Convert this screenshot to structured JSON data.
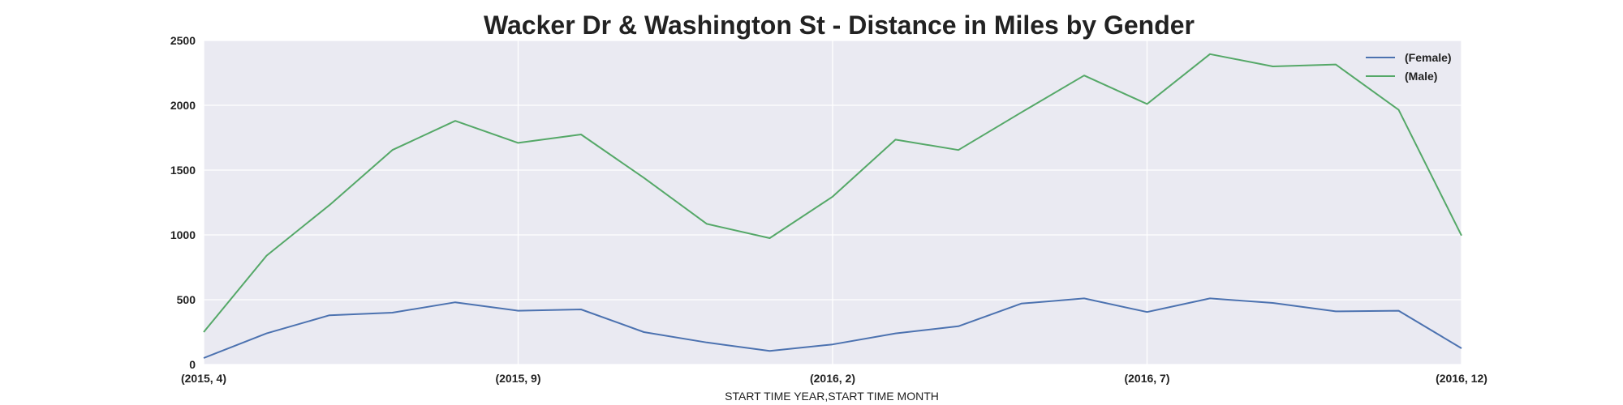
{
  "chart_data": {
    "type": "line",
    "title": "Wacker Dr & Washington St - Distance in Miles by Gender",
    "xlabel": "START TIME YEAR,START TIME MONTH",
    "ylabel": "",
    "ylim": [
      0,
      2500
    ],
    "yticks": [
      0,
      500,
      1000,
      1500,
      2000,
      2500
    ],
    "x": [
      "(2015, 4)",
      "(2015, 5)",
      "(2015, 6)",
      "(2015, 7)",
      "(2015, 8)",
      "(2015, 9)",
      "(2015, 10)",
      "(2015, 11)",
      "(2015, 12)",
      "(2016, 1)",
      "(2016, 2)",
      "(2016, 3)",
      "(2016, 4)",
      "(2016, 5)",
      "(2016, 6)",
      "(2016, 7)",
      "(2016, 8)",
      "(2016, 9)",
      "(2016, 10)",
      "(2016, 11)",
      "(2016, 12)"
    ],
    "xtick_labels": [
      "(2015, 4)",
      "(2015, 9)",
      "(2016, 2)",
      "(2016, 7)",
      "(2016, 12)"
    ],
    "grid": true,
    "legend_position": "top-right",
    "series": [
      {
        "name": "(Female)",
        "color": "#4c72b0",
        "values": [
          50,
          240,
          380,
          400,
          480,
          415,
          425,
          250,
          170,
          105,
          155,
          240,
          295,
          470,
          510,
          405,
          510,
          475,
          410,
          415,
          125
        ]
      },
      {
        "name": "(Male)",
        "color": "#55a868",
        "values": [
          250,
          840,
          1230,
          1655,
          1880,
          1710,
          1775,
          1440,
          1085,
          975,
          1295,
          1735,
          1655,
          1945,
          2230,
          2010,
          2395,
          2300,
          2315,
          1965,
          995
        ]
      }
    ],
    "background_color": "#eaeaf2",
    "grid_color": "#ffffff"
  }
}
